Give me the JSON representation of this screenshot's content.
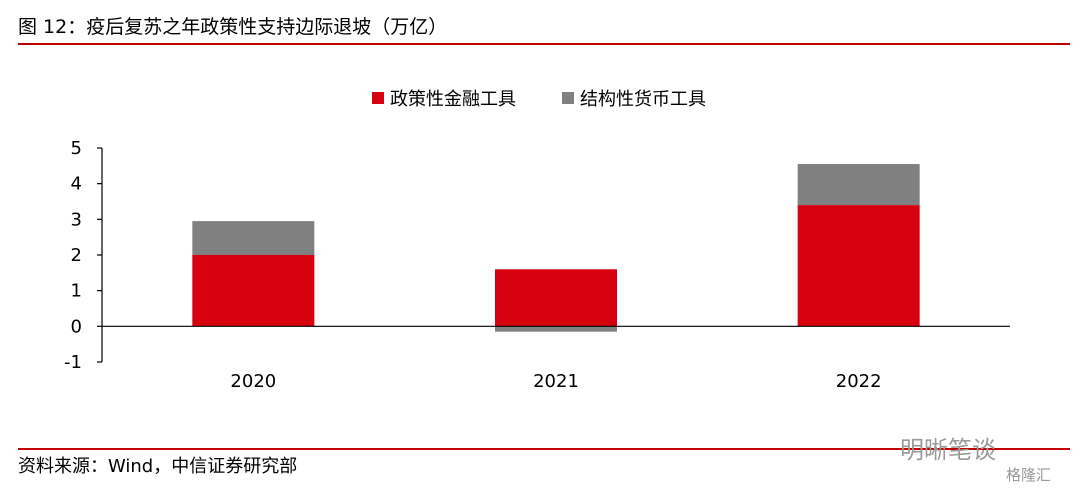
{
  "figure": {
    "title": "图 12：疫后复苏之年政策性支持边际退坡（万亿）",
    "source": "资料来源：Wind，中信证券研究部",
    "watermark": "明晰笔谈",
    "watermark_sub": "格隆汇"
  },
  "colors": {
    "accent": "#c00000",
    "series1": "#d7000f",
    "series2": "#808080",
    "axis": "#000000"
  },
  "chart_data": {
    "type": "bar",
    "stacked": true,
    "categories": [
      "2020",
      "2021",
      "2022"
    ],
    "series": [
      {
        "name": "政策性金融工具",
        "values": [
          2.0,
          1.6,
          3.4
        ]
      },
      {
        "name": "结构性货币工具",
        "values": [
          0.95,
          -0.15,
          1.15
        ]
      }
    ],
    "ylim": [
      -1,
      5
    ],
    "yticks": [
      5,
      4,
      3,
      2,
      1,
      0,
      -1
    ],
    "legend": "top-center",
    "grid": false,
    "xlabel": "",
    "ylabel": ""
  }
}
